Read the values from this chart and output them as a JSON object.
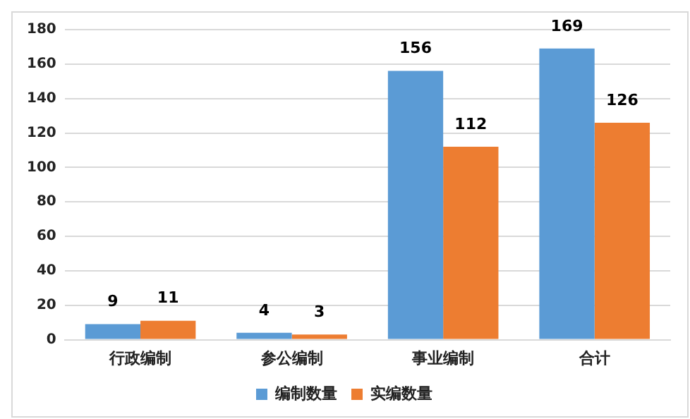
{
  "chart_data": {
    "type": "bar",
    "categories": [
      "行政编制",
      "参公编制",
      "事业编制",
      "合计"
    ],
    "series": [
      {
        "name": "编制数量",
        "color": "#5b9bd5",
        "values": [
          9,
          4,
          156,
          169
        ]
      },
      {
        "name": "实编数量",
        "color": "#ed7d31",
        "values": [
          11,
          3,
          112,
          126
        ]
      }
    ],
    "ylim": [
      0,
      180
    ],
    "yticks": [
      0,
      20,
      40,
      60,
      80,
      100,
      120,
      140,
      160,
      180
    ],
    "grid": "y",
    "legend": "bottom",
    "data_labels": true
  }
}
